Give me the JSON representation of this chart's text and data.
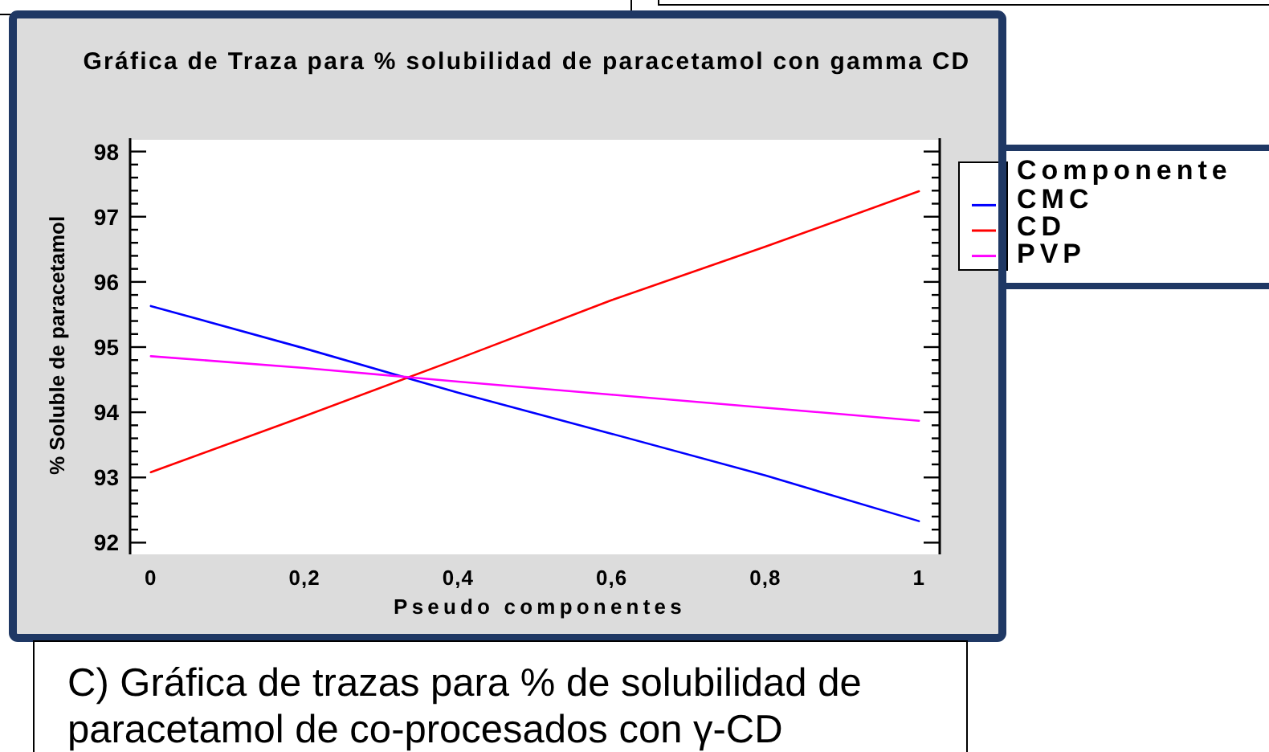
{
  "chart_data": {
    "type": "line",
    "title": "Gráfica de Traza para % solubilidad de paracetamol con gamma CD",
    "xlabel": "Pseudo componentes",
    "ylabel": "% Soluble de paracetamol",
    "legend_title": "Componente",
    "annotations": [
      "C) Gráfica de trazas para % de solubilidad de paracetamol de co-procesados con γ-CD"
    ],
    "x": [
      0,
      0.2,
      0.4,
      0.6,
      0.8,
      1
    ],
    "series": [
      {
        "name": "CMC",
        "color": "#0000ff",
        "values": [
          95.63,
          94.98,
          94.3,
          93.67,
          93.03,
          92.33
        ]
      },
      {
        "name": "CD",
        "color": "#ff0000",
        "values": [
          93.08,
          93.94,
          94.82,
          95.72,
          96.54,
          97.39
        ]
      },
      {
        "name": "PVP",
        "color": "#ff00ff",
        "values": [
          94.86,
          94.68,
          94.47,
          94.27,
          94.07,
          93.87
        ]
      }
    ],
    "xlim": [
      -0.027,
      1.027
    ],
    "xticks": [
      0,
      {
        "value": 0.2,
        "label": "0,2"
      },
      {
        "value": 0.4,
        "label": "0,4"
      },
      {
        "value": 0.6,
        "label": "0,6"
      },
      {
        "value": 0.8,
        "label": "0,8"
      },
      1
    ],
    "ylim": [
      91.82,
      98.18
    ],
    "yticks": [
      92,
      {
        "value": 92.2,
        "label": null
      },
      {
        "value": 92.4,
        "label": null
      },
      {
        "value": 92.6,
        "label": null
      },
      {
        "value": 92.8,
        "label": null
      },
      93,
      {
        "value": 93.2,
        "label": null
      },
      {
        "value": 93.4,
        "label": null
      },
      {
        "value": 93.6,
        "label": null
      },
      {
        "value": 93.8,
        "label": null
      },
      94,
      {
        "value": 94.2,
        "label": null
      },
      {
        "value": 94.4,
        "label": null
      },
      {
        "value": 94.6,
        "label": null
      },
      {
        "value": 94.8,
        "label": null
      },
      95,
      {
        "value": 95.2,
        "label": null
      },
      {
        "value": 95.4,
        "label": null
      },
      {
        "value": 95.6,
        "label": null
      },
      {
        "value": 95.8,
        "label": null
      },
      96,
      {
        "value": 96.2,
        "label": null
      },
      {
        "value": 96.4,
        "label": null
      },
      {
        "value": 96.6,
        "label": null
      },
      {
        "value": 96.8,
        "label": null
      },
      97,
      {
        "value": 97.2,
        "label": null
      },
      {
        "value": 97.4,
        "label": null
      },
      {
        "value": 97.6,
        "label": null
      },
      {
        "value": 97.8,
        "label": null
      },
      98
    ],
    "legend": "right"
  }
}
